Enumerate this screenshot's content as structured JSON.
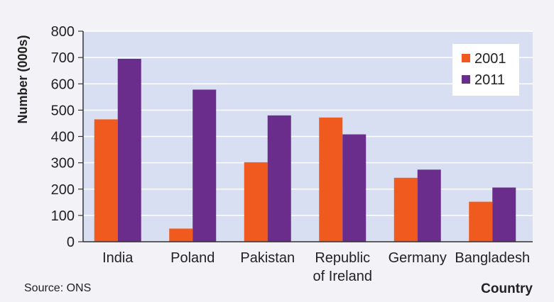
{
  "chart_data": {
    "type": "bar",
    "title": "",
    "ylabel": "Number (000s)",
    "xlabel": "Country",
    "source": "Source: ONS",
    "ylim": [
      0,
      800
    ],
    "yticks": [
      0,
      100,
      200,
      300,
      400,
      500,
      600,
      700,
      800
    ],
    "grid": true,
    "legend_position": "top-right",
    "categories": [
      [
        "India"
      ],
      [
        "Poland"
      ],
      [
        "Pakistan"
      ],
      [
        "Republic",
        "of Ireland"
      ],
      [
        "Germany"
      ],
      [
        "Bangladesh"
      ]
    ],
    "series": [
      {
        "name": "2001",
        "color": "#f05a1e",
        "values": [
          465,
          50,
          302,
          472,
          243,
          152
        ]
      },
      {
        "name": "2011",
        "color": "#6b2d8c",
        "values": [
          695,
          578,
          480,
          408,
          274,
          206
        ]
      }
    ]
  }
}
